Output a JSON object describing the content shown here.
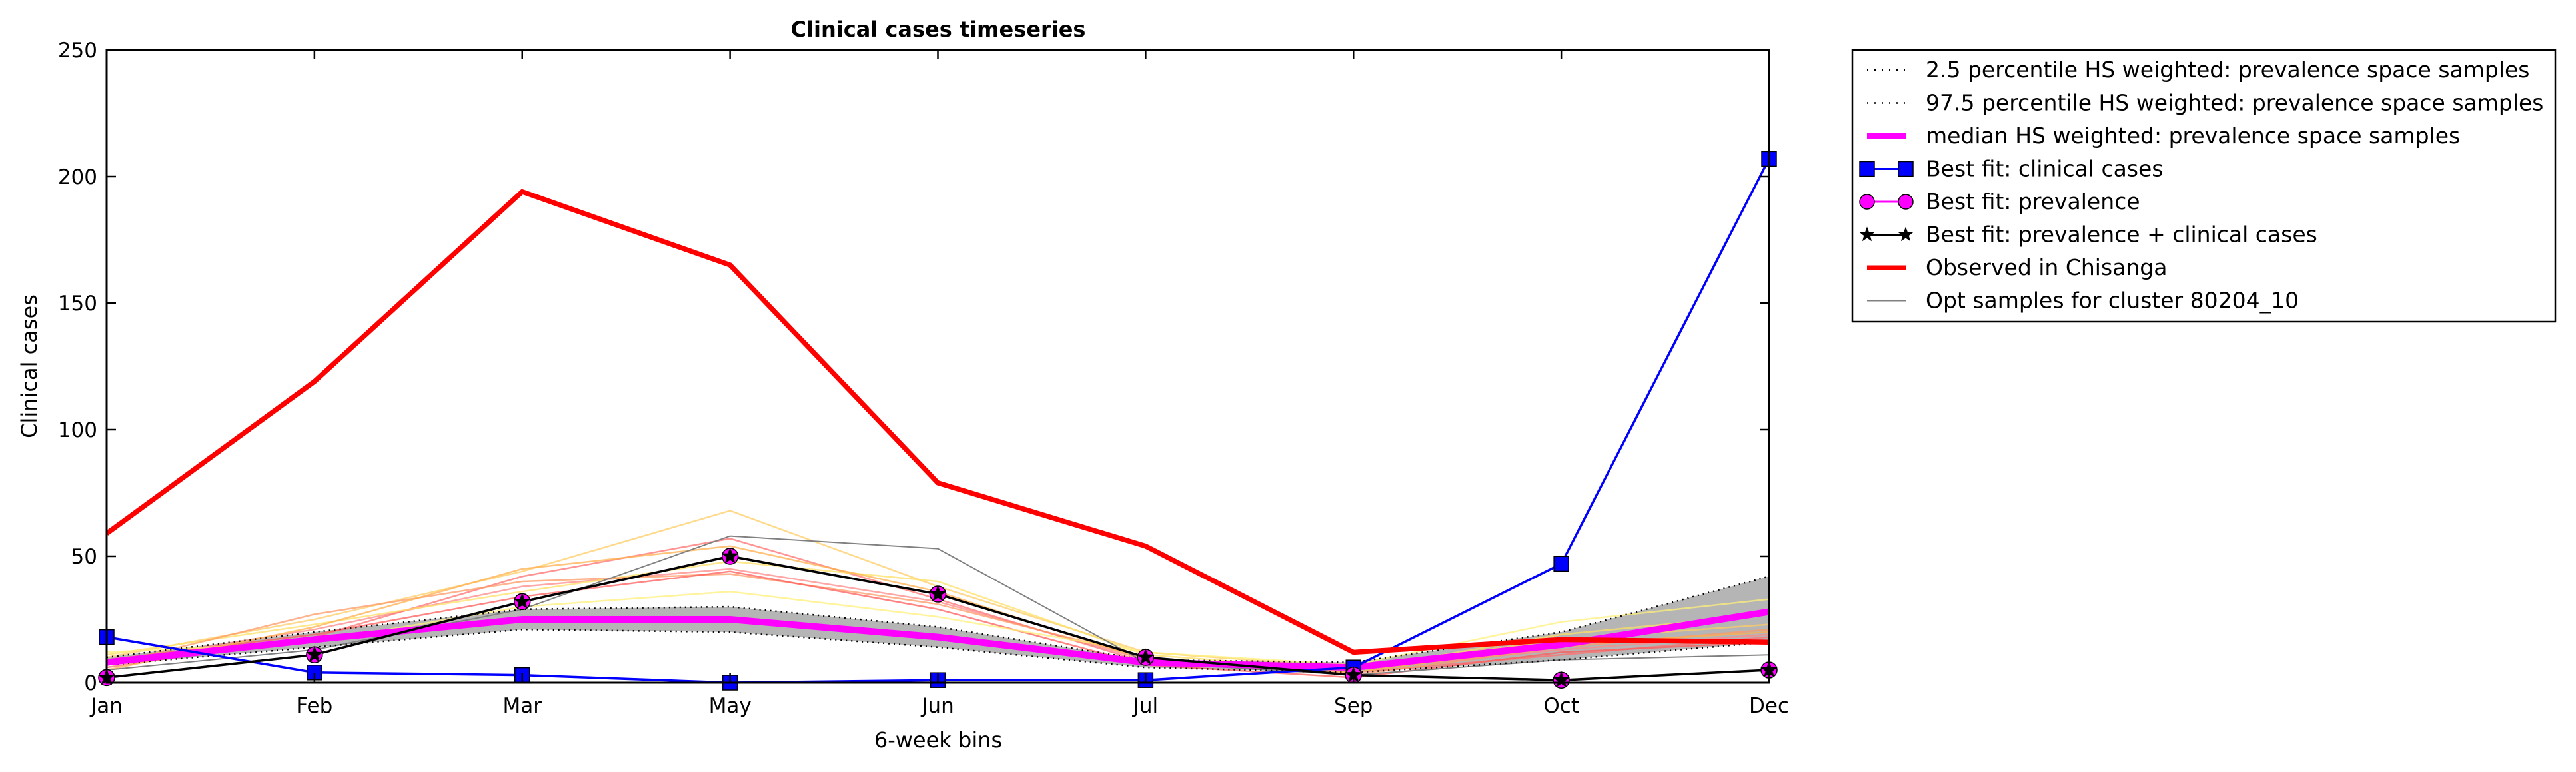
{
  "chart_data": {
    "type": "line",
    "title": "Clinical cases timeseries",
    "xlabel": "6-week bins",
    "ylabel": "Clinical cases",
    "categories": [
      "Jan",
      "Feb",
      "Mar",
      "May",
      "Jun",
      "Jul",
      "Sep",
      "Oct",
      "Dec"
    ],
    "yticks": [
      "0",
      "50",
      "100",
      "150",
      "200",
      "250"
    ],
    "ylim": [
      0,
      250
    ],
    "grid": false,
    "legend_position": "outside-right",
    "colors": {
      "observed": "#ff0000",
      "best_fit_clinical": "#0000ff",
      "best_fit_prevalence": "#ff00ff",
      "best_fit_combined": "#000000",
      "median": "#ff00ff",
      "percentile": "#000000",
      "band_fill": "#b5b5b5",
      "opt_samples": "#808080"
    },
    "band": {
      "lower": [
        7,
        14,
        21,
        20,
        14,
        6,
        4,
        9,
        16
      ],
      "upper": [
        10,
        20,
        29,
        30,
        22,
        9,
        8,
        20,
        42
      ]
    },
    "series": [
      {
        "name": "2.5 percentile HS weighted: prevalence space samples",
        "role": "p025",
        "values": [
          7,
          14,
          21,
          20,
          14,
          6,
          4,
          9,
          16
        ]
      },
      {
        "name": "97.5 percentile HS weighted: prevalence space samples",
        "role": "p975",
        "values": [
          10,
          20,
          29,
          30,
          22,
          9,
          8,
          20,
          42
        ]
      },
      {
        "name": "median HS weighted: prevalence space samples",
        "role": "median",
        "values": [
          8,
          17,
          25,
          25,
          18,
          8,
          6,
          15,
          28
        ]
      },
      {
        "name": "Best fit: clinical cases",
        "role": "best_clinical",
        "values": [
          18,
          4,
          3,
          0,
          1,
          1,
          6,
          47,
          207
        ]
      },
      {
        "name": "Best fit: prevalence",
        "role": "best_prevalence",
        "values": [
          2,
          11,
          32,
          50,
          35,
          10,
          3,
          1,
          5
        ]
      },
      {
        "name": "Best fit: prevalence + clinical cases",
        "role": "best_combined",
        "values": [
          2,
          11,
          32,
          50,
          35,
          10,
          3,
          1,
          5
        ]
      },
      {
        "name": "Observed in Chisanga",
        "role": "observed",
        "values": [
          59,
          119,
          194,
          165,
          79,
          54,
          12,
          17,
          16
        ]
      },
      {
        "name": "Opt samples for cluster 80204_10",
        "role": "opt_samples",
        "values": [
          5,
          13,
          29,
          58,
          53,
          8,
          3,
          9,
          11
        ]
      }
    ],
    "opt_sample_traces": [
      {
        "color": "#ff8a8a",
        "values": [
          8,
          21,
          38,
          45,
          32,
          9,
          5,
          13,
          19
        ]
      },
      {
        "color": "#ffcc66",
        "values": [
          10,
          25,
          44,
          68,
          38,
          12,
          6,
          17,
          23
        ]
      },
      {
        "color": "#ff7070",
        "values": [
          6,
          18,
          42,
          57,
          33,
          8,
          4,
          11,
          18
        ]
      },
      {
        "color": "#ffe066",
        "values": [
          11,
          23,
          36,
          48,
          40,
          11,
          5,
          19,
          27
        ]
      },
      {
        "color": "#ff9966",
        "values": [
          7,
          27,
          40,
          43,
          31,
          10,
          3,
          14,
          21
        ]
      },
      {
        "color": "#ff5c5c",
        "values": [
          9,
          19,
          34,
          44,
          29,
          7,
          2,
          12,
          16
        ]
      },
      {
        "color": "#fff07a",
        "values": [
          12,
          16,
          30,
          36,
          26,
          12,
          7,
          24,
          33
        ]
      },
      {
        "color": "#ffb04d",
        "values": [
          5,
          22,
          45,
          54,
          36,
          9,
          4,
          15,
          20
        ]
      }
    ],
    "legend": [
      {
        "label": "2.5 percentile HS weighted: prevalence space samples",
        "style": "dotted"
      },
      {
        "label": "97.5 percentile HS weighted: prevalence space samples",
        "style": "dotted"
      },
      {
        "label": "median HS weighted: prevalence space samples",
        "style": "median"
      },
      {
        "label": "Best fit: clinical cases",
        "style": "square"
      },
      {
        "label": "Best fit: prevalence",
        "style": "circle"
      },
      {
        "label": "Best fit: prevalence + clinical cases",
        "style": "star"
      },
      {
        "label": "Observed in Chisanga",
        "style": "observed"
      },
      {
        "label": "Opt samples for cluster 80204_10",
        "style": "thin"
      }
    ]
  }
}
